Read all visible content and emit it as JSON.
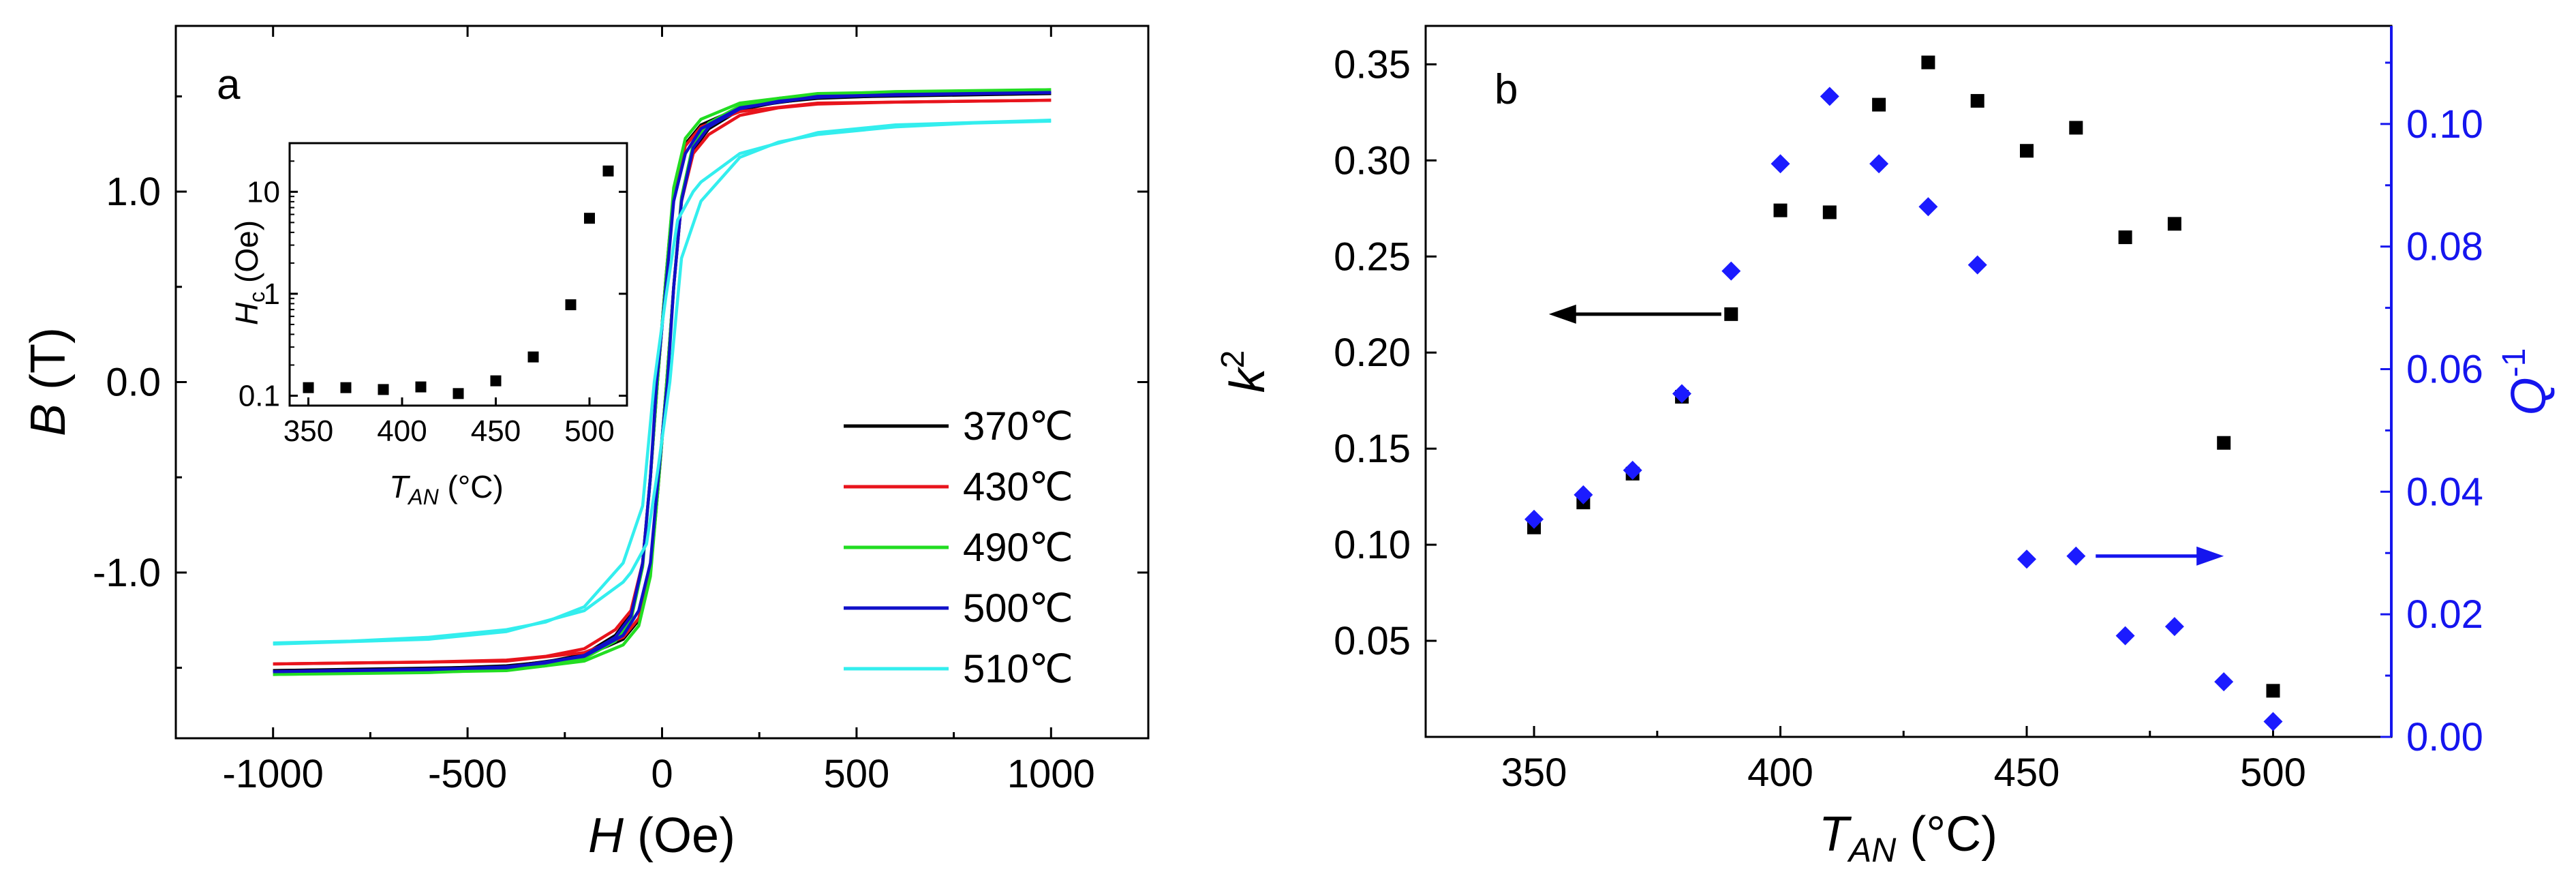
{
  "figure": {
    "panel_a_label": "a",
    "panel_b_label": "b"
  },
  "colors": {
    "black": "#000000",
    "red": "#e8141c",
    "green": "#22dd22",
    "blue": "#1010c8",
    "cyan": "#33eeee",
    "marker_blue": "#1b1bff",
    "axis_blue": "#1515ee"
  },
  "chart_data": [
    {
      "id": "panel-a",
      "type": "line",
      "title": "",
      "xlabel_var": "H",
      "xlabel_unit": " (Oe)",
      "ylabel_var": "B",
      "ylabel_unit": " (T)",
      "xlim": [
        -1250,
        1250
      ],
      "ylim": [
        -1.87,
        1.87
      ],
      "xticks": [
        -1000,
        -500,
        0,
        500,
        1000
      ],
      "xtick_labels": [
        "-1000",
        "-500",
        "0",
        "500",
        "1000"
      ],
      "yticks": [
        -1.0,
        0.0,
        1.0
      ],
      "ytick_labels": [
        "-1.0",
        "0.0",
        "1.0"
      ],
      "legend_position": "bottom-right",
      "series": [
        {
          "name": "370℃",
          "color": "#000000",
          "loops": [
            [
              [
                -1000,
                -1.515
              ],
              [
                -600,
                -1.505
              ],
              [
                -400,
                -1.49
              ],
              [
                -300,
                -1.47
              ],
              [
                -200,
                -1.43
              ],
              [
                -120,
                -1.33
              ],
              [
                -80,
                -1.22
              ],
              [
                -50,
                -0.95
              ],
              [
                -30,
                -0.5
              ],
              [
                -12,
                0
              ],
              [
                10,
                0.55
              ],
              [
                30,
                1.0
              ],
              [
                60,
                1.25
              ],
              [
                100,
                1.35
              ],
              [
                200,
                1.44
              ],
              [
                400,
                1.495
              ],
              [
                1000,
                1.515
              ]
            ],
            [
              [
                -1000,
                -1.515
              ],
              [
                -400,
                -1.495
              ],
              [
                -200,
                -1.44
              ],
              [
                -100,
                -1.35
              ],
              [
                -60,
                -1.25
              ],
              [
                -30,
                -1.0
              ],
              [
                -10,
                -0.55
              ],
              [
                12,
                0
              ],
              [
                30,
                0.5
              ],
              [
                50,
                0.95
              ],
              [
                80,
                1.22
              ],
              [
                120,
                1.33
              ],
              [
                200,
                1.43
              ],
              [
                300,
                1.47
              ],
              [
                400,
                1.49
              ],
              [
                600,
                1.505
              ],
              [
                1000,
                1.515
              ]
            ]
          ]
        },
        {
          "name": "430℃",
          "color": "#e8141c",
          "loops": [
            [
              [
                -1000,
                -1.48
              ],
              [
                -600,
                -1.47
              ],
              [
                -400,
                -1.46
              ],
              [
                -300,
                -1.44
              ],
              [
                -200,
                -1.4
              ],
              [
                -120,
                -1.3
              ],
              [
                -80,
                -1.2
              ],
              [
                -50,
                -0.95
              ],
              [
                -30,
                -0.5
              ],
              [
                -12,
                0
              ],
              [
                10,
                0.55
              ],
              [
                30,
                1.0
              ],
              [
                60,
                1.24
              ],
              [
                100,
                1.34
              ],
              [
                200,
                1.42
              ],
              [
                400,
                1.465
              ],
              [
                1000,
                1.48
              ]
            ],
            [
              [
                -1000,
                -1.48
              ],
              [
                -400,
                -1.465
              ],
              [
                -200,
                -1.42
              ],
              [
                -100,
                -1.34
              ],
              [
                -60,
                -1.24
              ],
              [
                -30,
                -1.0
              ],
              [
                -10,
                -0.55
              ],
              [
                12,
                0
              ],
              [
                30,
                0.5
              ],
              [
                50,
                0.95
              ],
              [
                80,
                1.2
              ],
              [
                120,
                1.3
              ],
              [
                200,
                1.4
              ],
              [
                300,
                1.44
              ],
              [
                400,
                1.46
              ],
              [
                600,
                1.47
              ],
              [
                1000,
                1.48
              ]
            ]
          ]
        },
        {
          "name": "490℃",
          "color": "#22dd22",
          "loops": [
            [
              [
                -1000,
                -1.535
              ],
              [
                -600,
                -1.525
              ],
              [
                -400,
                -1.51
              ],
              [
                -300,
                -1.49
              ],
              [
                -200,
                -1.45
              ],
              [
                -120,
                -1.36
              ],
              [
                -80,
                -1.25
              ],
              [
                -50,
                -0.97
              ],
              [
                -30,
                -0.5
              ],
              [
                -12,
                0
              ],
              [
                10,
                0.55
              ],
              [
                30,
                1.02
              ],
              [
                60,
                1.28
              ],
              [
                100,
                1.38
              ],
              [
                200,
                1.465
              ],
              [
                400,
                1.515
              ],
              [
                1000,
                1.535
              ]
            ],
            [
              [
                -1000,
                -1.535
              ],
              [
                -400,
                -1.515
              ],
              [
                -200,
                -1.465
              ],
              [
                -100,
                -1.38
              ],
              [
                -60,
                -1.28
              ],
              [
                -30,
                -1.02
              ],
              [
                -10,
                -0.55
              ],
              [
                12,
                0
              ],
              [
                30,
                0.5
              ],
              [
                50,
                0.97
              ],
              [
                80,
                1.25
              ],
              [
                120,
                1.36
              ],
              [
                200,
                1.45
              ],
              [
                300,
                1.49
              ],
              [
                400,
                1.51
              ],
              [
                600,
                1.525
              ],
              [
                1000,
                1.535
              ]
            ]
          ]
        },
        {
          "name": "500℃",
          "color": "#1010c8",
          "loops": [
            [
              [
                -1000,
                -1.52
              ],
              [
                -600,
                -1.51
              ],
              [
                -400,
                -1.495
              ],
              [
                -300,
                -1.475
              ],
              [
                -200,
                -1.435
              ],
              [
                -120,
                -1.34
              ],
              [
                -80,
                -1.23
              ],
              [
                -50,
                -0.95
              ],
              [
                -30,
                -0.5
              ],
              [
                -14,
                0
              ],
              [
                10,
                0.5
              ],
              [
                30,
                0.95
              ],
              [
                60,
                1.2
              ],
              [
                100,
                1.33
              ],
              [
                200,
                1.44
              ],
              [
                400,
                1.5
              ],
              [
                1000,
                1.52
              ]
            ],
            [
              [
                -1000,
                -1.52
              ],
              [
                -400,
                -1.5
              ],
              [
                -200,
                -1.44
              ],
              [
                -100,
                -1.33
              ],
              [
                -60,
                -1.2
              ],
              [
                -30,
                -0.95
              ],
              [
                -10,
                -0.5
              ],
              [
                14,
                0
              ],
              [
                30,
                0.5
              ],
              [
                50,
                0.95
              ],
              [
                80,
                1.23
              ],
              [
                120,
                1.34
              ],
              [
                200,
                1.435
              ],
              [
                300,
                1.475
              ],
              [
                400,
                1.495
              ],
              [
                600,
                1.51
              ],
              [
                1000,
                1.52
              ]
            ]
          ]
        },
        {
          "name": "510℃",
          "color": "#33eeee",
          "loops": [
            [
              [
                -1000,
                -1.37
              ],
              [
                -800,
                -1.36
              ],
              [
                -600,
                -1.34
              ],
              [
                -400,
                -1.3
              ],
              [
                -300,
                -1.26
              ],
              [
                -200,
                -1.18
              ],
              [
                -100,
                -0.95
              ],
              [
                -50,
                -0.65
              ],
              [
                -20,
                0
              ],
              [
                10,
                0.45
              ],
              [
                40,
                0.85
              ],
              [
                80,
                1.0
              ],
              [
                100,
                1.05
              ],
              [
                200,
                1.2
              ],
              [
                400,
                1.31
              ],
              [
                600,
                1.35
              ],
              [
                1000,
                1.375
              ]
            ],
            [
              [
                -1000,
                -1.375
              ],
              [
                -600,
                -1.35
              ],
              [
                -400,
                -1.31
              ],
              [
                -200,
                -1.2
              ],
              [
                -100,
                -1.05
              ],
              [
                -80,
                -1.0
              ],
              [
                -40,
                -0.85
              ],
              [
                -10,
                -0.45
              ],
              [
                20,
                0
              ],
              [
                50,
                0.65
              ],
              [
                100,
                0.95
              ],
              [
                200,
                1.18
              ],
              [
                300,
                1.26
              ],
              [
                400,
                1.3
              ],
              [
                600,
                1.34
              ],
              [
                800,
                1.36
              ],
              [
                1000,
                1.37
              ]
            ]
          ]
        }
      ]
    },
    {
      "id": "inset",
      "type": "scatter",
      "xlabel_var": "T",
      "xlabel_sub": "AN",
      "xlabel_unit": " (°C)",
      "ylabel_var": "H",
      "ylabel_sub": "c",
      "ylabel_unit": " (Oe)",
      "yscale": "log",
      "xlim": [
        340,
        520
      ],
      "ylim": [
        0.08,
        30
      ],
      "xticks": [
        350,
        400,
        450,
        500
      ],
      "xtick_labels": [
        "350",
        "400",
        "450",
        "500"
      ],
      "yticks": [
        0.1,
        1,
        10
      ],
      "ytick_labels": [
        "0.1",
        "1",
        "10"
      ],
      "x": [
        350,
        370,
        390,
        410,
        430,
        450,
        470,
        490,
        500,
        510
      ],
      "y": [
        0.12,
        0.12,
        0.115,
        0.122,
        0.105,
        0.14,
        0.24,
        0.78,
        5.5,
        16
      ]
    },
    {
      "id": "panel-b",
      "type": "scatter",
      "xlabel_var": "T",
      "xlabel_sub": "AN",
      "xlabel_unit": " (°C)",
      "ylabel_left_var": "k",
      "ylabel_left_sup": "2",
      "ylabel_right_var": "Q",
      "ylabel_right_sup": "-1",
      "xlim": [
        328,
        524
      ],
      "ylim_left": [
        0.0,
        0.37
      ],
      "ylim_right": [
        0.0,
        0.116
      ],
      "xticks": [
        350,
        400,
        450,
        500
      ],
      "xtick_labels": [
        "350",
        "400",
        "450",
        "500"
      ],
      "yticks_left": [
        0.05,
        0.1,
        0.15,
        0.2,
        0.25,
        0.3,
        0.35
      ],
      "ytick_labels_left": [
        "0.05",
        "0.10",
        "0.15",
        "0.20",
        "0.25",
        "0.30",
        "0.35"
      ],
      "yticks_right": [
        0.0,
        0.02,
        0.04,
        0.06,
        0.08,
        0.1
      ],
      "ytick_labels_right": [
        "0.00",
        "0.02",
        "0.04",
        "0.06",
        "0.08",
        "0.10"
      ],
      "series": [
        {
          "name": "k2",
          "axis": "left",
          "marker": "square",
          "color": "#000000",
          "x": [
            350,
            360,
            370,
            380,
            390,
            400,
            410,
            420,
            430,
            440,
            450,
            460,
            470,
            480,
            490,
            500
          ],
          "y": [
            0.109,
            0.122,
            0.137,
            0.177,
            0.22,
            0.274,
            0.273,
            0.329,
            0.351,
            0.331,
            0.305,
            0.317,
            0.26,
            0.267,
            0.153,
            0.024
          ]
        },
        {
          "name": "Q-1",
          "axis": "right",
          "marker": "diamond",
          "color": "#1b1bff",
          "x": [
            350,
            360,
            370,
            380,
            390,
            400,
            410,
            420,
            430,
            440,
            450,
            460,
            470,
            480,
            490,
            500
          ],
          "y": [
            0.0355,
            0.0395,
            0.0435,
            0.056,
            0.076,
            0.0935,
            0.1045,
            0.0935,
            0.0865,
            0.077,
            0.029,
            0.0295,
            0.0165,
            0.018,
            0.009,
            0.0025
          ]
        }
      ],
      "arrows": [
        {
          "name": "left-axis-arrow",
          "axis": "left",
          "from_x": 388,
          "to_x": 353,
          "y": 0.22
        },
        {
          "name": "right-axis-arrow",
          "axis": "right",
          "from_x": 464,
          "to_x": 490,
          "y": 0.0295
        }
      ]
    }
  ]
}
